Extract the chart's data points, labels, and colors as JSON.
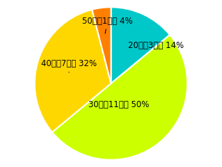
{
  "labels": [
    "20代（3人）",
    "30代（11人）",
    "40代（7人）",
    "50代（1人）"
  ],
  "pct_labels": [
    "14%",
    "50%",
    "32%",
    "4%"
  ],
  "values": [
    14,
    50,
    32,
    4
  ],
  "colors": [
    "#00C8C8",
    "#CCFF00",
    "#FFD700",
    "#FF8000"
  ],
  "startangle": 90,
  "figsize": [
    3.19,
    2.4
  ],
  "dpi": 100,
  "background_color": "#FFFFFF",
  "font_size": 8.5
}
